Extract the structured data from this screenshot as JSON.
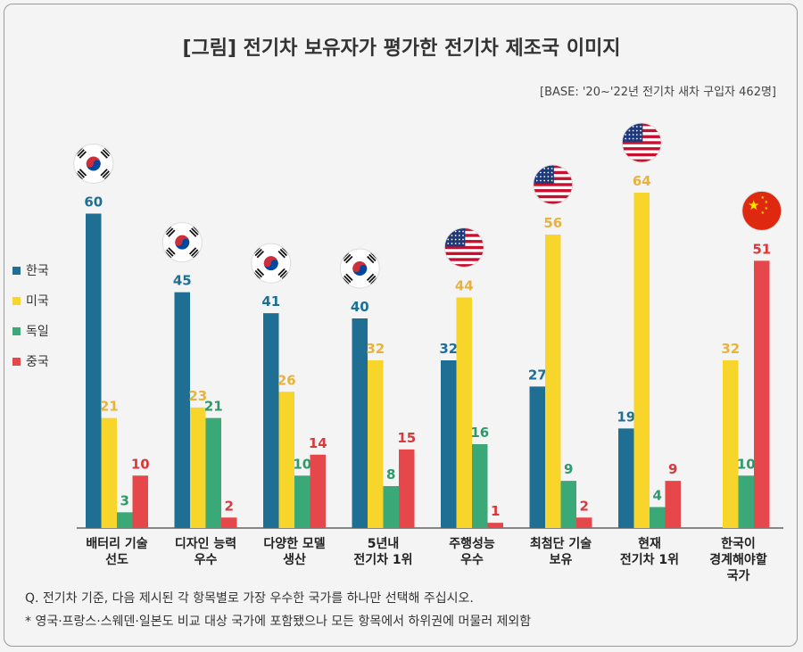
{
  "title": "[그림] 전기차 보유자가 평가한 전기차 제조국 이미지",
  "base_note": "[BASE: '20~'22년 전기차 새차 구입자 462명]",
  "notes": [
    "Q. 전기차 기준, 다음 제시된 각 항목별로 가장 우수한 국가를 하나만 선택해 주십시오.",
    "* 영국·프랑스·스웨덴·일본도 비교 대상 국가에 포함됐으나 모든 항목에서 하위권에 머물러 제외함"
  ],
  "chart_data": {
    "type": "bar",
    "ylim": [
      0,
      64
    ],
    "legend_position": "left",
    "grid": false,
    "categories": [
      [
        "배터리 기술",
        "선도"
      ],
      [
        "디자인 능력",
        "우수"
      ],
      [
        "다양한 모델",
        "생산"
      ],
      [
        "5년내",
        "전기차 1위"
      ],
      [
        "주행성능",
        "우수"
      ],
      [
        "최첨단 기술",
        "보유"
      ],
      [
        "현재",
        "전기차 1위"
      ],
      [
        "한국이",
        "경계해야할",
        "국가"
      ]
    ],
    "series": [
      {
        "name": "한국",
        "color": "#1f6f94",
        "label_color": "#1f6f94",
        "values": [
          60,
          45,
          41,
          40,
          32,
          27,
          19,
          null
        ]
      },
      {
        "name": "미국",
        "color": "#f7d52a",
        "label_color": "#e8b33c",
        "values": [
          21,
          23,
          26,
          32,
          44,
          56,
          64,
          32
        ]
      },
      {
        "name": "독일",
        "color": "#3aa877",
        "label_color": "#2e9a6a",
        "values": [
          3,
          21,
          10,
          8,
          16,
          9,
          4,
          10
        ]
      },
      {
        "name": "중국",
        "color": "#e5474a",
        "label_color": "#d8393c",
        "values": [
          10,
          2,
          14,
          15,
          1,
          2,
          9,
          51
        ]
      }
    ],
    "top_flags": [
      "korea-flag",
      "korea-flag",
      "korea-flag",
      "korea-flag",
      "usa-flag",
      "usa-flag",
      "usa-flag",
      "china-flag"
    ]
  }
}
